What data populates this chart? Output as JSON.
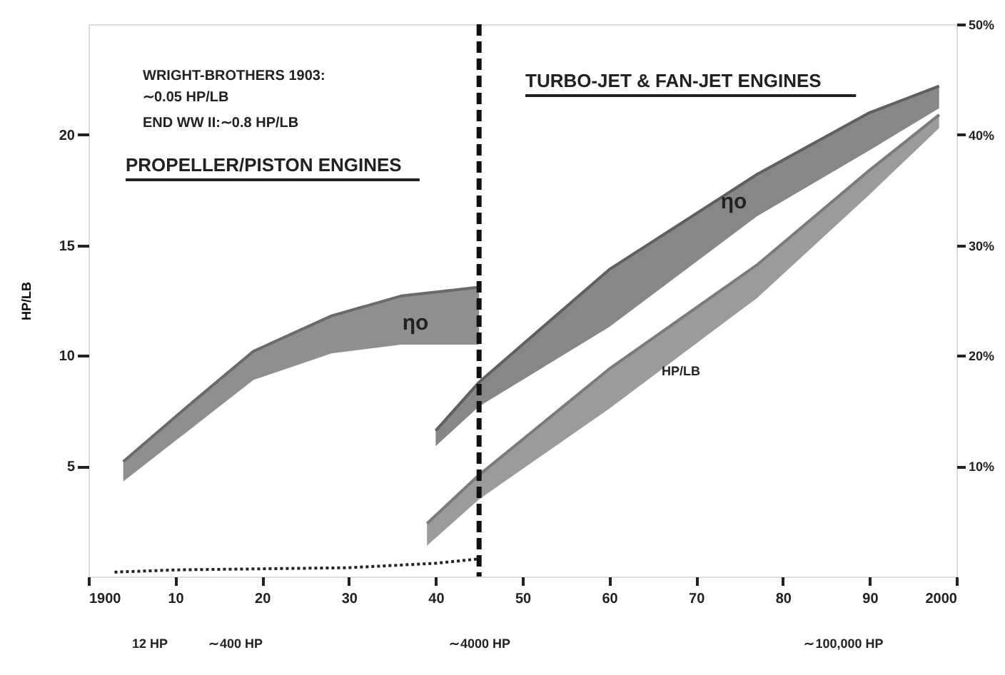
{
  "chart_data": {
    "type": "line",
    "xlim": [
      1900,
      2000
    ],
    "xticks": [
      {
        "value": 1900,
        "label": "1900"
      },
      {
        "value": 1910,
        "label": "10"
      },
      {
        "value": 1920,
        "label": "20"
      },
      {
        "value": 1930,
        "label": "30"
      },
      {
        "value": 1940,
        "label": "40"
      },
      {
        "value": 1950,
        "label": "50"
      },
      {
        "value": 1960,
        "label": "60"
      },
      {
        "value": 1970,
        "label": "70"
      },
      {
        "value": 1980,
        "label": "80"
      },
      {
        "value": 1990,
        "label": "90"
      },
      {
        "value": 2000,
        "label": "2000"
      }
    ],
    "ylabel": "HP/LB",
    "ylim": [
      0,
      25
    ],
    "yticks": [
      5,
      10,
      15,
      20
    ],
    "y2lim": [
      0,
      50
    ],
    "y2ticks": [
      {
        "value": 10,
        "label": "10%"
      },
      {
        "value": 20,
        "label": "20%"
      },
      {
        "value": 30,
        "label": "30%"
      },
      {
        "value": 40,
        "label": "40%"
      },
      {
        "value": 50,
        "label": "50%"
      }
    ],
    "grid": false,
    "series": [
      {
        "axis": "y2",
        "color": "#6a6a6a",
        "x": [
          1904,
          1912,
          1919,
          1928,
          1936,
          1945
        ],
        "values": [
          10.4,
          15.8,
          20.4,
          23.6,
          25.4,
          26.2
        ],
        "upper": [
          10.4,
          15.8,
          20.4,
          23.6,
          25.4,
          26.2
        ],
        "lower": [
          8.6,
          13.5,
          17.8,
          20.2,
          21.0,
          21.0
        ]
      },
      {
        "axis": "y2",
        "color": "#5f5f5f",
        "x": [
          1940,
          1945,
          1960,
          1977,
          1990,
          1998
        ],
        "values": [
          13.2,
          17.6,
          27.8,
          36.4,
          42.0,
          44.4
        ],
        "upper": [
          13.2,
          17.6,
          27.8,
          36.4,
          42.0,
          44.4
        ],
        "lower": [
          11.8,
          15.4,
          22.6,
          32.6,
          38.6,
          42.4
        ]
      },
      {
        "color": "#7a7a7a",
        "x": [
          1939,
          1945,
          1960,
          1977,
          1990,
          1998
        ],
        "values": [
          2.4,
          4.6,
          9.4,
          14.1,
          18.4,
          20.9
        ],
        "upper": [
          2.4,
          4.6,
          9.4,
          14.1,
          18.4,
          20.9
        ],
        "lower": [
          1.4,
          3.5,
          7.6,
          12.6,
          17.3,
          20.3
        ]
      },
      {
        "line_style": "dotted",
        "color": "#222222",
        "x": [
          1903,
          1910,
          1920,
          1930,
          1940,
          1945
        ],
        "values": [
          0.2,
          0.3,
          0.35,
          0.4,
          0.6,
          0.8
        ]
      }
    ],
    "ref_lines": [
      {
        "axis": "x",
        "value": 1945,
        "color": "#111111",
        "line_style": "dashed"
      }
    ],
    "annotations": [
      "WRIGHT-BROTHERS 1903:\n∼0.05 HP/LB",
      "END WW II:∼0.8 HP/LB",
      "PROPELLER/PISTON ENGINES",
      "TURBO-JET & FAN-JET ENGINES",
      "ηo",
      "ηo",
      "HP/LB",
      "12 HP",
      "∼400 HP",
      "∼4000 HP",
      "∼100,000 HP"
    ]
  }
}
